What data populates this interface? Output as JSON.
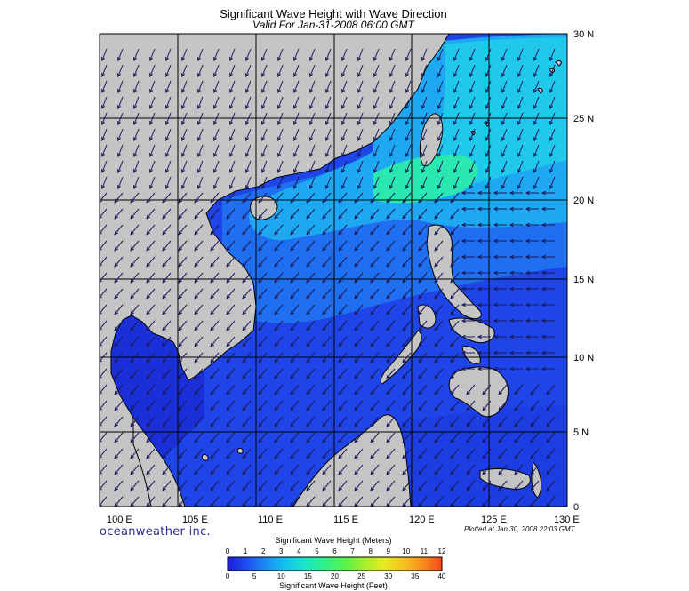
{
  "header": {
    "title": "Significant Wave Height with Wave Direction",
    "subtitle": "Valid For Jan-31-2008 06:00 GMT"
  },
  "axes": {
    "lon_ticks": [
      "100 E",
      "105 E",
      "110 E",
      "115 E",
      "120 E",
      "125 E",
      "130 E"
    ],
    "lat_ticks": [
      "0",
      "5 N",
      "10 N",
      "15 N",
      "20 N",
      "25 N",
      "30 N"
    ],
    "lon_range": [
      99,
      130
    ],
    "lat_range": [
      0,
      30
    ]
  },
  "footer": {
    "brand": "oceanweather inc.",
    "plotted": "Plotted at Jan 30, 2008 22:03 GMT"
  },
  "colorbar": {
    "meters_title": "Significant Wave Height (Meters)",
    "feet_title": "Significant Wave Height (Feet)",
    "meters_ticks": [
      "0",
      "1",
      "2",
      "3",
      "4",
      "5",
      "6",
      "7",
      "8",
      "9",
      "10",
      "11",
      "12"
    ],
    "feet_ticks": [
      "0",
      "5",
      "10",
      "15",
      "20",
      "25",
      "30",
      "35",
      "40"
    ],
    "colors": [
      "#1b1bd6",
      "#1f4ff0",
      "#1c8df2",
      "#15c2f0",
      "#19e6c9",
      "#2ef08a",
      "#58f24a",
      "#a6ee2c",
      "#e8ea22",
      "#f6c320",
      "#f68e1c",
      "#f2461c"
    ]
  },
  "colors": {
    "land": "#c4c4c4",
    "deep_blue": "#1a2fd8",
    "mid_blue": "#1f6bf0",
    "light_blue": "#1ea8f2",
    "cyan": "#20d8e6",
    "aqua_green": "#2ae8b0",
    "grid": "#000000"
  }
}
